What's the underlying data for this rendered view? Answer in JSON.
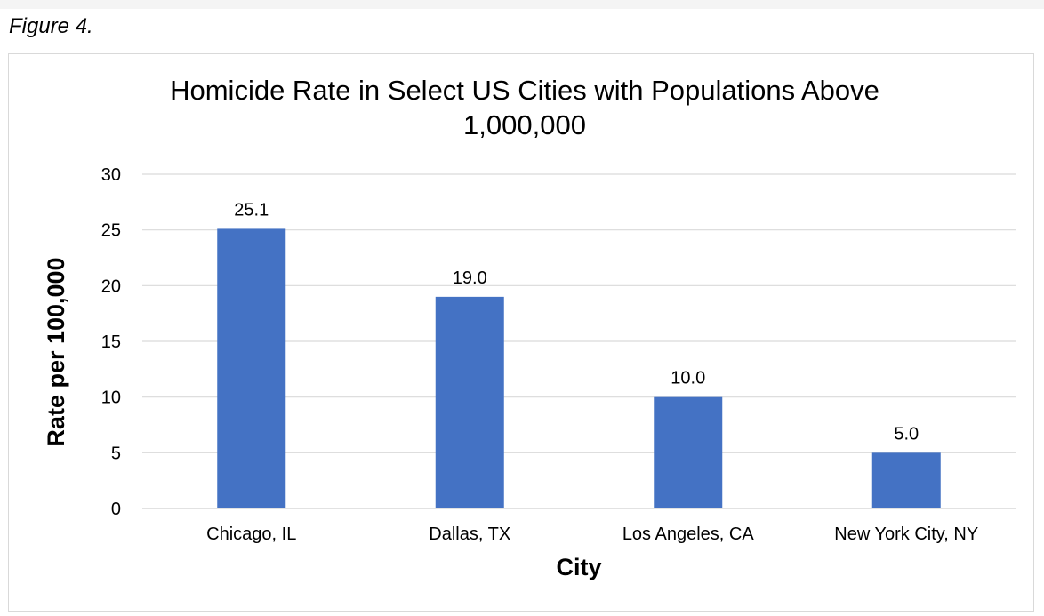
{
  "figure_label": "Figure 4.",
  "chart_data": {
    "type": "bar",
    "title_lines": [
      "Homicide Rate in Select US Cities with Populations Above",
      "1,000,000"
    ],
    "categories": [
      "Chicago, IL",
      "Dallas, TX",
      "Los Angeles, CA",
      "New York City, NY"
    ],
    "values": [
      25.1,
      19.0,
      10.0,
      5.0
    ],
    "data_labels": [
      "25.1",
      "19.0",
      "10.0",
      "5.0"
    ],
    "xlabel": "City",
    "ylabel": "Rate per 100,000",
    "ylim": [
      0,
      30
    ],
    "yticks": [
      "0",
      "5",
      "10",
      "15",
      "20",
      "25",
      "30"
    ],
    "grid": true,
    "bar_color": "#4472c4",
    "grid_color": "#d9d9d9"
  }
}
